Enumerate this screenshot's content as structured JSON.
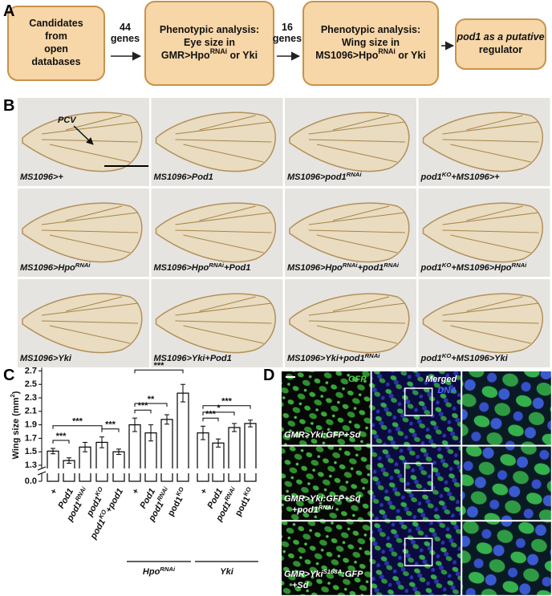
{
  "panel_labels": [
    "A",
    "B",
    "C",
    "D"
  ],
  "flow": {
    "boxes": [
      {
        "lines": [
          [
            "Candidates"
          ],
          [
            "from"
          ],
          [
            "open"
          ],
          [
            "databases"
          ]
        ]
      },
      {
        "lines": [
          [
            "Phenotypic analysis:"
          ],
          [
            "Eye size in"
          ],
          [
            "GMR>Hpo",
            "RNAi",
            " or Yki"
          ]
        ]
      },
      {
        "lines": [
          [
            "Phenotypic analysis:"
          ],
          [
            "Wing size in"
          ],
          [
            "MS1096>Hpo",
            "RNAi",
            " or Yki"
          ]
        ]
      },
      {
        "lines": [
          [
            "pod1 as a putative"
          ],
          [
            "regulator"
          ]
        ]
      }
    ],
    "arrow_labels": [
      [
        "44",
        "genes"
      ],
      [
        "16",
        "genes"
      ]
    ]
  },
  "wings": {
    "annotation": "PCV",
    "labels": [
      [
        "MS1096>+"
      ],
      [
        "MS1096>Pod1"
      ],
      [
        "MS1096>pod1",
        "RNAi"
      ],
      [
        "pod1",
        "KO",
        "+MS1096>+"
      ],
      [
        "MS1096>Hpo",
        "RNAi"
      ],
      [
        "MS1096>Hpo",
        "RNAi",
        "+Pod1"
      ],
      [
        "MS1096>Hpo",
        "RNAi",
        "+pod1",
        "RNAi"
      ],
      [
        "pod1",
        "KO",
        "+MS1096>Hpo",
        "RNAi"
      ],
      [
        "MS1096>Yki"
      ],
      [
        "MS1096>Yki+Pod1"
      ],
      [
        "MS1096>Yki+pod1",
        "RNAi"
      ],
      [
        "pod1",
        "KO",
        "+MS1096>Yki"
      ]
    ]
  },
  "chart_data": {
    "type": "bar",
    "y_label": [
      "Wing size (mm",
      "2",
      ")"
    ],
    "categories": [
      [
        "+"
      ],
      [
        "Pod1"
      ],
      [
        "pod1",
        "RNAi"
      ],
      [
        "pod1",
        "KO"
      ],
      [
        "pod1",
        "KO",
        "+pod1"
      ],
      [
        "+"
      ],
      [
        "Pod1"
      ],
      [
        "pod1",
        "RNAi"
      ],
      [
        "pod1",
        "KO"
      ],
      [
        "+"
      ],
      [
        "Pod1"
      ],
      [
        "pod1",
        "RNAi"
      ],
      [
        "pod1",
        "KO"
      ]
    ],
    "values": [
      1.51,
      1.37,
      1.57,
      1.64,
      1.5,
      1.9,
      1.78,
      1.98,
      2.37,
      1.78,
      1.63,
      1.86,
      1.92
    ],
    "errors": [
      0.04,
      0.04,
      0.07,
      0.08,
      0.04,
      0.1,
      0.12,
      0.07,
      0.13,
      0.1,
      0.06,
      0.06,
      0.05
    ],
    "groups": [
      {
        "label": [
          "Hpo",
          "RNAi"
        ],
        "from": 5,
        "to": 8
      },
      {
        "label": [
          "Yki"
        ],
        "from": 9,
        "to": 12
      }
    ],
    "annotations": [
      {
        "text": "***",
        "from": 0,
        "to": 1
      },
      {
        "text": "***",
        "from": 0,
        "to": 3
      },
      {
        "text": "***",
        "from": 3,
        "to": 4
      },
      {
        "text": "***",
        "from": 5,
        "to": 6
      },
      {
        "text": "**",
        "from": 5,
        "to": 7
      },
      {
        "text": "***",
        "from": 5,
        "to": 8
      },
      {
        "text": "***",
        "from": 9,
        "to": 10
      },
      {
        "text": "*",
        "from": 9,
        "to": 11
      },
      {
        "text": "***",
        "from": 9,
        "to": 12
      }
    ],
    "ylim": [
      0,
      2.7
    ],
    "axis_break": [
      0,
      1.3
    ],
    "yticks": [
      {
        "value": 0,
        "label": "0.0"
      },
      1.3,
      1.5,
      1.7,
      1.9,
      2.1,
      2.3,
      2.5,
      2.7
    ],
    "color": "#ffffff",
    "edge_color": "#000000"
  },
  "microscopy": {
    "channels": {
      "gfp": "GFP",
      "merged": "Merged",
      "dna": "DNA"
    },
    "rows": [
      [
        [
          "GMR>Yki:GFP+Sd"
        ]
      ],
      [
        [
          "GMR>Yki:GFP+Sd"
        ],
        [
          "+pod1",
          "RNAi"
        ]
      ],
      [
        [
          "GMR>Yki",
          "S168A",
          ":GFP"
        ],
        [
          "+Sd"
        ]
      ]
    ]
  }
}
